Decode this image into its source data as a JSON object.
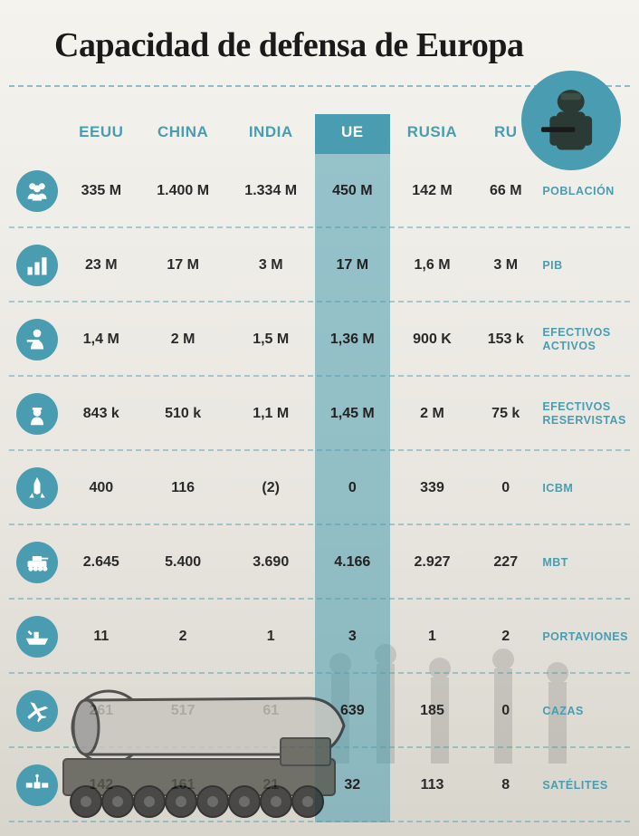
{
  "title": "Capacidad de defensa de Europa",
  "accent_color": "#4a9db0",
  "highlight_column_index": 3,
  "columns": [
    "EEUU",
    "CHINA",
    "INDIA",
    "UE",
    "RUSIA",
    "RU"
  ],
  "rows": [
    {
      "icon": "people-icon",
      "label": "POBLACIÓN",
      "values": [
        "335 M",
        "1.400 M",
        "1.334 M",
        "450 M",
        "142 M",
        "66 M"
      ]
    },
    {
      "icon": "bars-icon",
      "label": "PIB",
      "values": [
        "23 M",
        "17 M",
        "3 M",
        "17 M",
        "1,6 M",
        "3 M"
      ]
    },
    {
      "icon": "active-icon",
      "label": "EFECTIVOS ACTIVOS",
      "values": [
        "1,4 M",
        "2 M",
        "1,5 M",
        "1,36 M",
        "900 K",
        "153 k"
      ]
    },
    {
      "icon": "reserve-icon",
      "label": "EFECTIVOS RESERVISTAS",
      "values": [
        "843 k",
        "510 k",
        "1,1 M",
        "1,45 M",
        "2 M",
        "75 k"
      ]
    },
    {
      "icon": "missile-icon",
      "label": "ICBM",
      "values": [
        "400",
        "116",
        "(2)",
        "0",
        "339",
        "0"
      ]
    },
    {
      "icon": "tank-icon",
      "label": "MBT",
      "values": [
        "2.645",
        "5.400",
        "3.690",
        "4.166",
        "2.927",
        "227"
      ]
    },
    {
      "icon": "carrier-icon",
      "label": "PORTAVIONES",
      "values": [
        "11",
        "2",
        "1",
        "3",
        "1",
        "2"
      ]
    },
    {
      "icon": "jet-icon",
      "label": "CAZAS",
      "values": [
        "261",
        "517",
        "61",
        "639",
        "185",
        "0"
      ]
    },
    {
      "icon": "satellite-icon",
      "label": "SATÉLITES",
      "values": [
        "142",
        "161",
        "21",
        "32",
        "113",
        "8"
      ]
    }
  ],
  "style": {
    "title_fontsize": 38,
    "header_fontsize": 17,
    "cell_fontsize": 16,
    "label_fontsize": 12.5,
    "text_color": "#2a2a2a",
    "bg_gradient": [
      "#f5f3ee",
      "#d8d5cc"
    ],
    "dash_color": "#4a9db0"
  }
}
